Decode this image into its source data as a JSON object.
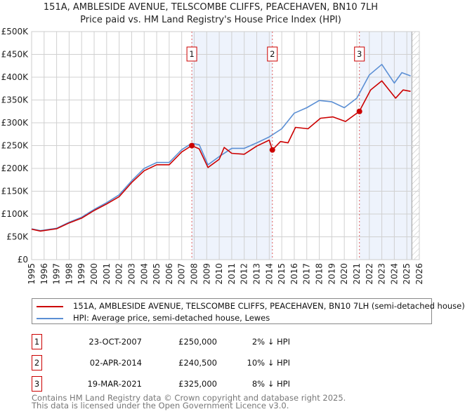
{
  "chart_data": {
    "type": "line",
    "title": "151A, AMBLESIDE AVENUE, TELSCOMBE CLIFFS, PEACEHAVEN, BN10 7LH",
    "subtitle": "Price paid vs. HM Land Registry's House Price Index (HPI)",
    "xlim": [
      1995,
      2026
    ],
    "ylim": [
      0,
      500000
    ],
    "x_ticks": [
      "1995",
      "1996",
      "1997",
      "1998",
      "1999",
      "2000",
      "2001",
      "2002",
      "2003",
      "2004",
      "2005",
      "2006",
      "2007",
      "2008",
      "2009",
      "2010",
      "2011",
      "2012",
      "2013",
      "2014",
      "2015",
      "2016",
      "2017",
      "2018",
      "2019",
      "2020",
      "2021",
      "2022",
      "2023",
      "2024",
      "2025",
      "2026"
    ],
    "y_ticks": [
      {
        "v": 0,
        "label": "£0"
      },
      {
        "v": 50000,
        "label": "£50K"
      },
      {
        "v": 100000,
        "label": "£100K"
      },
      {
        "v": 150000,
        "label": "£150K"
      },
      {
        "v": 200000,
        "label": "£200K"
      },
      {
        "v": 250000,
        "label": "£250K"
      },
      {
        "v": 300000,
        "label": "£300K"
      },
      {
        "v": 350000,
        "label": "£350K"
      },
      {
        "v": 400000,
        "label": "£400K"
      },
      {
        "v": 450000,
        "label": "£450K"
      },
      {
        "v": 500000,
        "label": "£500K"
      }
    ],
    "grid": true,
    "shaded_periods": [
      [
        2007.81,
        2014.25
      ],
      [
        2021.21,
        2025.4
      ]
    ],
    "forecast_hatch_from": 2025.4,
    "series": [
      {
        "name": "151A, AMBLESIDE AVENUE, TELSCOMBE CLIFFS, PEACEHAVEN, BN10 7LH (semi-detached house)",
        "color": "#cc0000",
        "x": [
          1995,
          1995.7,
          1997,
          1998,
          1999,
          2000,
          2001,
          2002,
          2003,
          2004,
          2005,
          2006,
          2007,
          2007.8,
          2008.4,
          2009.1,
          2010,
          2010.4,
          2011,
          2012,
          2013,
          2014,
          2014.25,
          2014.9,
          2015.5,
          2016.1,
          2017.1,
          2018.1,
          2019.1,
          2020.1,
          2021.2,
          2022.1,
          2023,
          2024.1,
          2024.7,
          2025.3
        ],
        "y": [
          66700,
          62600,
          67700,
          80500,
          91000,
          107700,
          122000,
          138000,
          169000,
          195000,
          208000,
          208000,
          236000,
          250000,
          243000,
          202000,
          220000,
          246000,
          233000,
          231000,
          249000,
          262000,
          240500,
          259000,
          256000,
          290000,
          287000,
          310000,
          313000,
          303000,
          325000,
          372000,
          392000,
          354000,
          372000,
          369000
        ]
      },
      {
        "name": "HPI: Average price, semi-detached house, Lewes",
        "color": "#5b8fd4",
        "x": [
          1995,
          1995.7,
          1997,
          1998,
          1999,
          2000,
          2001,
          2002,
          2003,
          2004,
          2005,
          2006,
          2007,
          2007.8,
          2008.4,
          2009.1,
          2010,
          2011,
          2012,
          2013,
          2014,
          2015,
          2016,
          2017,
          2018,
          2019,
          2020,
          2021,
          2022,
          2023,
          2024,
          2024.6,
          2025.3
        ],
        "y": [
          67500,
          63500,
          68700,
          82000,
          93000,
          110000,
          125000,
          142000,
          173000,
          200000,
          213000,
          213000,
          241000,
          255000,
          252000,
          208000,
          226000,
          244000,
          244000,
          256000,
          269000,
          287000,
          321000,
          333000,
          349000,
          346000,
          333000,
          354000,
          405000,
          428000,
          387000,
          410000,
          403000
        ]
      }
    ],
    "sales": [
      {
        "num": "1",
        "x": 2007.81,
        "y": 250000
      },
      {
        "num": "2",
        "x": 2014.25,
        "y": 240500
      },
      {
        "num": "3",
        "x": 2021.21,
        "y": 325000
      }
    ]
  },
  "legend": {
    "property": "151A, AMBLESIDE AVENUE, TELSCOMBE CLIFFS, PEACEHAVEN, BN10 7LH (semi-detached house)",
    "hpi": "HPI: Average price, semi-detached house, Lewes"
  },
  "sales_table": [
    {
      "num": "1",
      "date": "23-OCT-2007",
      "price": "£250,000",
      "hpi": "2% ↓ HPI"
    },
    {
      "num": "2",
      "date": "02-APR-2014",
      "price": "£240,500",
      "hpi": "10% ↓ HPI"
    },
    {
      "num": "3",
      "date": "19-MAR-2021",
      "price": "£325,000",
      "hpi": "8% ↓ HPI"
    }
  ],
  "footer": {
    "line1": "Contains HM Land Registry data © Crown copyright and database right 2025.",
    "line2": "This data is licensed under the Open Government Licence v3.0."
  }
}
